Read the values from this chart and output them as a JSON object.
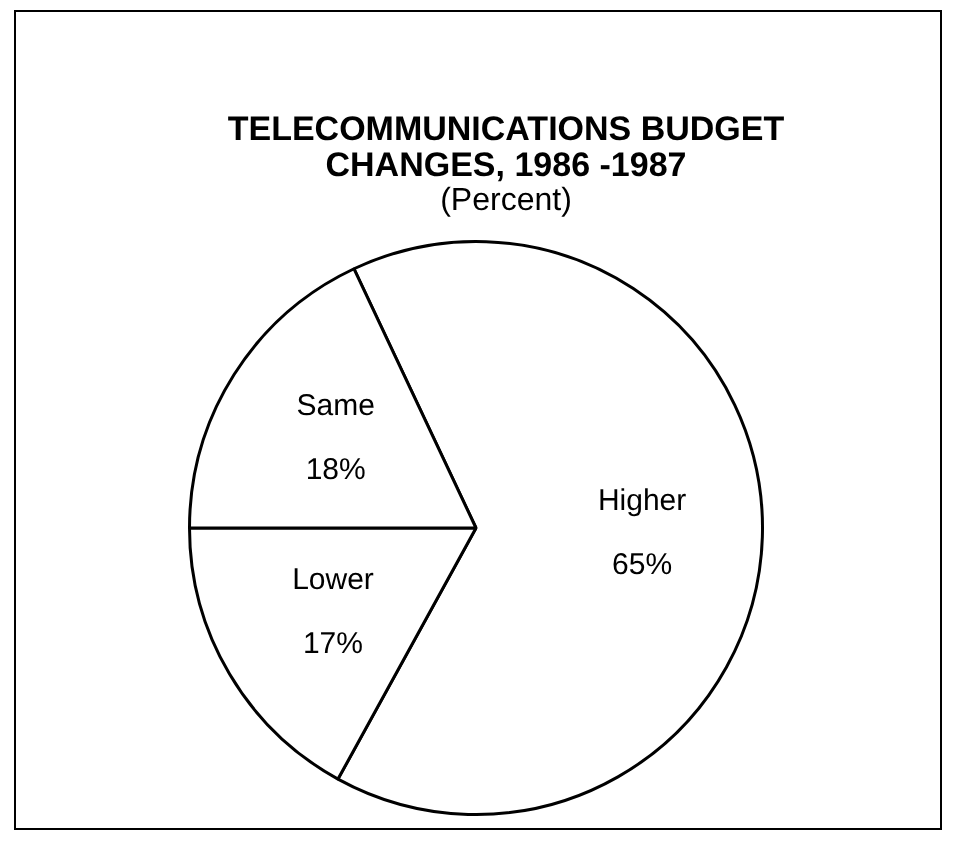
{
  "chart_data": {
    "type": "pie",
    "title": "TELECOMMUNICATIONS BUDGET CHANGES, 1986 -1987",
    "subtitle": "(Percent)",
    "categories": [
      "Higher",
      "Lower",
      "Same"
    ],
    "values": [
      65,
      17,
      18
    ],
    "colors": [
      "#ffffff",
      "#ffffff",
      "#ffffff"
    ],
    "value_labels": [
      "65%",
      "17%",
      "18%"
    ],
    "legend": false
  }
}
